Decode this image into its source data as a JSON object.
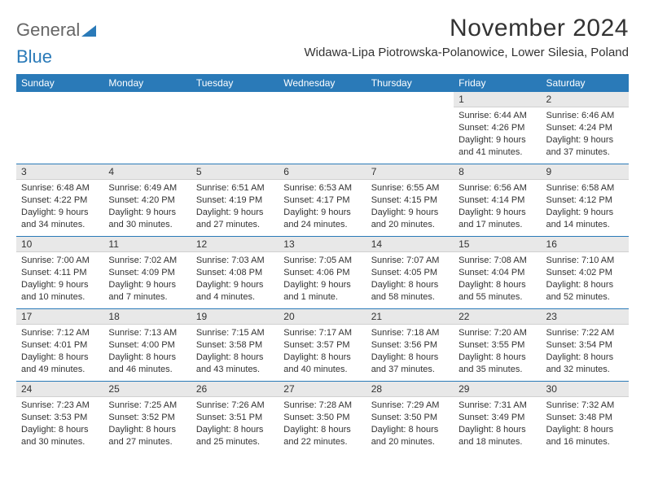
{
  "logo": {
    "text1": "General",
    "text2": "Blue"
  },
  "title": "November 2024",
  "location": "Widawa-Lipa Piotrowska-Polanowice, Lower Silesia, Poland",
  "colors": {
    "header_bg": "#2a7ab8",
    "header_text": "#ffffff",
    "daynum_bg": "#e8e8e8",
    "week_border": "#2a7ab8",
    "body_text": "#333333"
  },
  "weekdays": [
    "Sunday",
    "Monday",
    "Tuesday",
    "Wednesday",
    "Thursday",
    "Friday",
    "Saturday"
  ],
  "weeks": [
    [
      {
        "n": "",
        "sunrise": "",
        "sunset": "",
        "daylight": ""
      },
      {
        "n": "",
        "sunrise": "",
        "sunset": "",
        "daylight": ""
      },
      {
        "n": "",
        "sunrise": "",
        "sunset": "",
        "daylight": ""
      },
      {
        "n": "",
        "sunrise": "",
        "sunset": "",
        "daylight": ""
      },
      {
        "n": "",
        "sunrise": "",
        "sunset": "",
        "daylight": ""
      },
      {
        "n": "1",
        "sunrise": "Sunrise: 6:44 AM",
        "sunset": "Sunset: 4:26 PM",
        "daylight": "Daylight: 9 hours and 41 minutes."
      },
      {
        "n": "2",
        "sunrise": "Sunrise: 6:46 AM",
        "sunset": "Sunset: 4:24 PM",
        "daylight": "Daylight: 9 hours and 37 minutes."
      }
    ],
    [
      {
        "n": "3",
        "sunrise": "Sunrise: 6:48 AM",
        "sunset": "Sunset: 4:22 PM",
        "daylight": "Daylight: 9 hours and 34 minutes."
      },
      {
        "n": "4",
        "sunrise": "Sunrise: 6:49 AM",
        "sunset": "Sunset: 4:20 PM",
        "daylight": "Daylight: 9 hours and 30 minutes."
      },
      {
        "n": "5",
        "sunrise": "Sunrise: 6:51 AM",
        "sunset": "Sunset: 4:19 PM",
        "daylight": "Daylight: 9 hours and 27 minutes."
      },
      {
        "n": "6",
        "sunrise": "Sunrise: 6:53 AM",
        "sunset": "Sunset: 4:17 PM",
        "daylight": "Daylight: 9 hours and 24 minutes."
      },
      {
        "n": "7",
        "sunrise": "Sunrise: 6:55 AM",
        "sunset": "Sunset: 4:15 PM",
        "daylight": "Daylight: 9 hours and 20 minutes."
      },
      {
        "n": "8",
        "sunrise": "Sunrise: 6:56 AM",
        "sunset": "Sunset: 4:14 PM",
        "daylight": "Daylight: 9 hours and 17 minutes."
      },
      {
        "n": "9",
        "sunrise": "Sunrise: 6:58 AM",
        "sunset": "Sunset: 4:12 PM",
        "daylight": "Daylight: 9 hours and 14 minutes."
      }
    ],
    [
      {
        "n": "10",
        "sunrise": "Sunrise: 7:00 AM",
        "sunset": "Sunset: 4:11 PM",
        "daylight": "Daylight: 9 hours and 10 minutes."
      },
      {
        "n": "11",
        "sunrise": "Sunrise: 7:02 AM",
        "sunset": "Sunset: 4:09 PM",
        "daylight": "Daylight: 9 hours and 7 minutes."
      },
      {
        "n": "12",
        "sunrise": "Sunrise: 7:03 AM",
        "sunset": "Sunset: 4:08 PM",
        "daylight": "Daylight: 9 hours and 4 minutes."
      },
      {
        "n": "13",
        "sunrise": "Sunrise: 7:05 AM",
        "sunset": "Sunset: 4:06 PM",
        "daylight": "Daylight: 9 hours and 1 minute."
      },
      {
        "n": "14",
        "sunrise": "Sunrise: 7:07 AM",
        "sunset": "Sunset: 4:05 PM",
        "daylight": "Daylight: 8 hours and 58 minutes."
      },
      {
        "n": "15",
        "sunrise": "Sunrise: 7:08 AM",
        "sunset": "Sunset: 4:04 PM",
        "daylight": "Daylight: 8 hours and 55 minutes."
      },
      {
        "n": "16",
        "sunrise": "Sunrise: 7:10 AM",
        "sunset": "Sunset: 4:02 PM",
        "daylight": "Daylight: 8 hours and 52 minutes."
      }
    ],
    [
      {
        "n": "17",
        "sunrise": "Sunrise: 7:12 AM",
        "sunset": "Sunset: 4:01 PM",
        "daylight": "Daylight: 8 hours and 49 minutes."
      },
      {
        "n": "18",
        "sunrise": "Sunrise: 7:13 AM",
        "sunset": "Sunset: 4:00 PM",
        "daylight": "Daylight: 8 hours and 46 minutes."
      },
      {
        "n": "19",
        "sunrise": "Sunrise: 7:15 AM",
        "sunset": "Sunset: 3:58 PM",
        "daylight": "Daylight: 8 hours and 43 minutes."
      },
      {
        "n": "20",
        "sunrise": "Sunrise: 7:17 AM",
        "sunset": "Sunset: 3:57 PM",
        "daylight": "Daylight: 8 hours and 40 minutes."
      },
      {
        "n": "21",
        "sunrise": "Sunrise: 7:18 AM",
        "sunset": "Sunset: 3:56 PM",
        "daylight": "Daylight: 8 hours and 37 minutes."
      },
      {
        "n": "22",
        "sunrise": "Sunrise: 7:20 AM",
        "sunset": "Sunset: 3:55 PM",
        "daylight": "Daylight: 8 hours and 35 minutes."
      },
      {
        "n": "23",
        "sunrise": "Sunrise: 7:22 AM",
        "sunset": "Sunset: 3:54 PM",
        "daylight": "Daylight: 8 hours and 32 minutes."
      }
    ],
    [
      {
        "n": "24",
        "sunrise": "Sunrise: 7:23 AM",
        "sunset": "Sunset: 3:53 PM",
        "daylight": "Daylight: 8 hours and 30 minutes."
      },
      {
        "n": "25",
        "sunrise": "Sunrise: 7:25 AM",
        "sunset": "Sunset: 3:52 PM",
        "daylight": "Daylight: 8 hours and 27 minutes."
      },
      {
        "n": "26",
        "sunrise": "Sunrise: 7:26 AM",
        "sunset": "Sunset: 3:51 PM",
        "daylight": "Daylight: 8 hours and 25 minutes."
      },
      {
        "n": "27",
        "sunrise": "Sunrise: 7:28 AM",
        "sunset": "Sunset: 3:50 PM",
        "daylight": "Daylight: 8 hours and 22 minutes."
      },
      {
        "n": "28",
        "sunrise": "Sunrise: 7:29 AM",
        "sunset": "Sunset: 3:50 PM",
        "daylight": "Daylight: 8 hours and 20 minutes."
      },
      {
        "n": "29",
        "sunrise": "Sunrise: 7:31 AM",
        "sunset": "Sunset: 3:49 PM",
        "daylight": "Daylight: 8 hours and 18 minutes."
      },
      {
        "n": "30",
        "sunrise": "Sunrise: 7:32 AM",
        "sunset": "Sunset: 3:48 PM",
        "daylight": "Daylight: 8 hours and 16 minutes."
      }
    ]
  ]
}
